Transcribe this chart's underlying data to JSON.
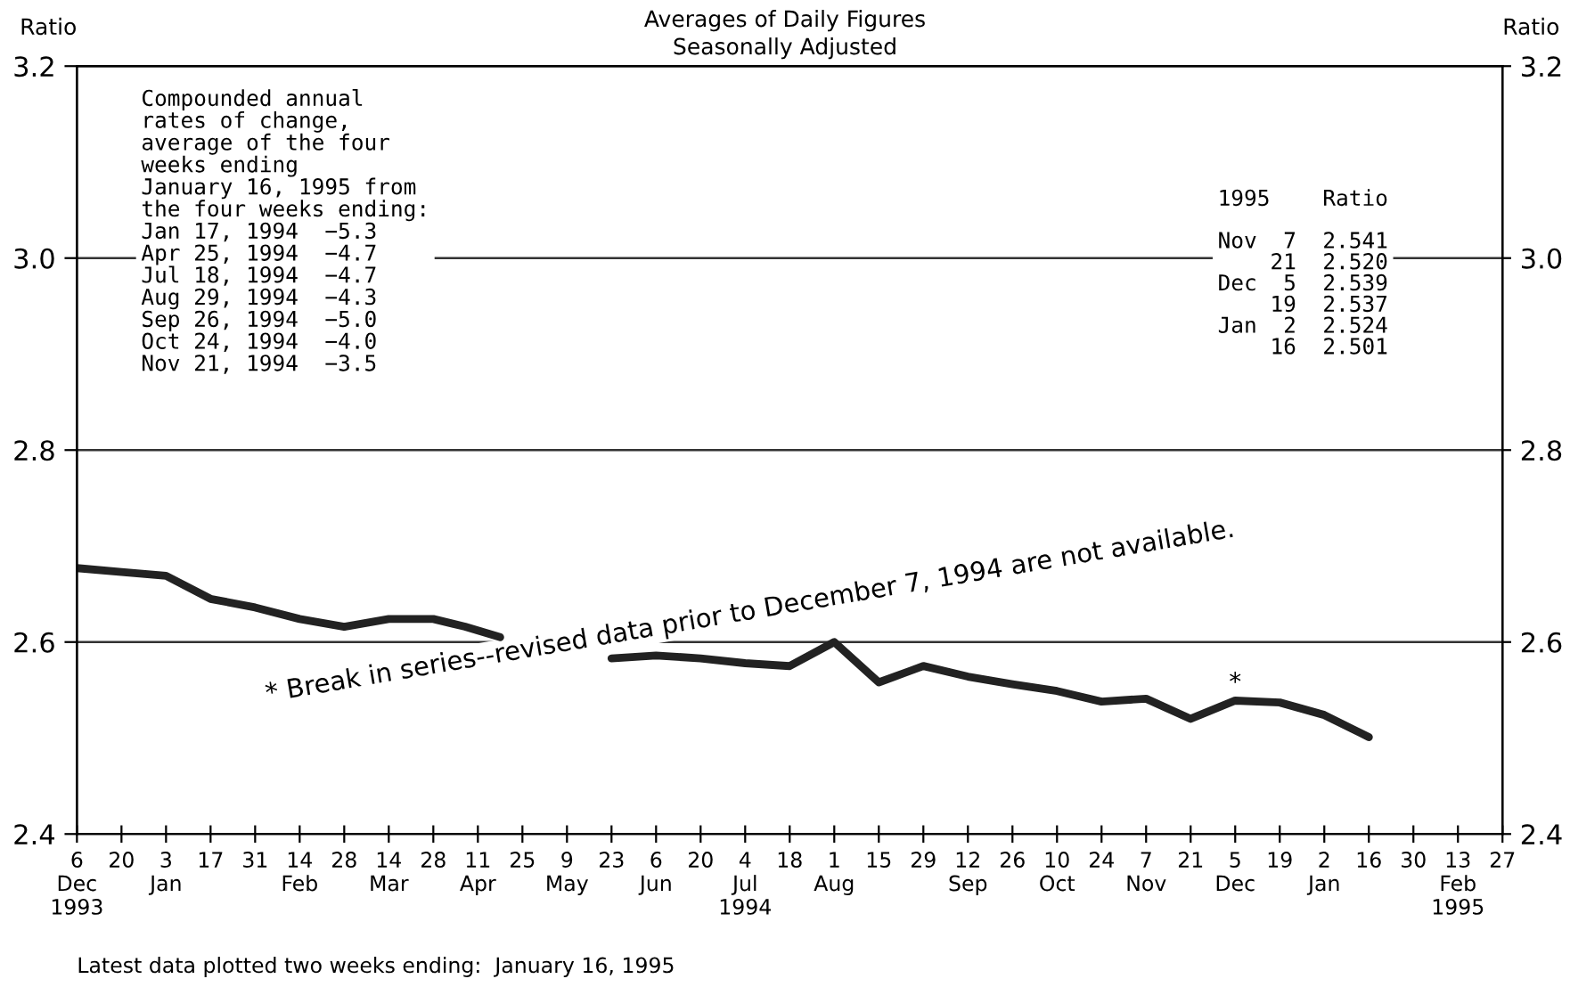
{
  "chart_data": {
    "type": "line",
    "title": "Averages of Daily Figures",
    "subtitle": "Seasonally Adjusted",
    "ylabel": "Ratio",
    "y2label": "Ratio",
    "x": [
      "1993-12-06",
      "1993-12-20",
      "1994-01-03",
      "1994-01-17",
      "1994-01-31",
      "1994-02-14",
      "1994-02-28",
      "1994-03-14",
      "1994-03-28",
      "1994-04-07",
      "1994-04-18",
      "1994-05-09",
      "1994-05-23",
      "1994-06-06",
      "1994-06-20",
      "1994-07-04",
      "1994-07-18",
      "1994-08-01",
      "1994-08-15",
      "1994-08-29",
      "1994-09-12",
      "1994-09-26",
      "1994-10-10",
      "1994-10-24",
      "1994-11-07",
      "1994-11-21",
      "1994-12-05",
      "1994-12-19",
      "1995-01-02",
      "1995-01-16"
    ],
    "series": [
      {
        "color": "#222222",
        "values": [
          2.677,
          2.673,
          2.669,
          2.645,
          2.636,
          2.624,
          2.616,
          2.624,
          2.624,
          2.616,
          2.605,
          null,
          2.583,
          2.586,
          2.583,
          2.578,
          2.575,
          2.6,
          2.558,
          2.575,
          2.564,
          2.556,
          2.549,
          2.538,
          2.541,
          2.52,
          2.539,
          2.537,
          2.524,
          2.501
        ]
      }
    ],
    "line_style": "solid",
    "marker": "none",
    "grid": "y",
    "legend": false,
    "xlim": [
      "1993-12-06",
      "1995-02-27"
    ],
    "xticks": [
      {
        "value": "1993-12-06",
        "label": "6\nDec\n1993"
      },
      {
        "value": "1993-12-20",
        "label": "20"
      },
      {
        "value": "1994-01-03",
        "label": "3\nJan"
      },
      {
        "value": "1994-01-17",
        "label": "17"
      },
      {
        "value": "1994-01-31",
        "label": "31"
      },
      {
        "value": "1994-02-14",
        "label": "14\nFeb"
      },
      {
        "value": "1994-02-28",
        "label": "28"
      },
      {
        "value": "1994-03-14",
        "label": "14\nMar"
      },
      {
        "value": "1994-03-28",
        "label": "28"
      },
      {
        "value": "1994-04-11",
        "label": "11\nApr"
      },
      {
        "value": "1994-04-25",
        "label": "25"
      },
      {
        "value": "1994-05-09",
        "label": "9\nMay"
      },
      {
        "value": "1994-05-23",
        "label": "23"
      },
      {
        "value": "1994-06-06",
        "label": "6\nJun"
      },
      {
        "value": "1994-06-20",
        "label": "20"
      },
      {
        "value": "1994-07-04",
        "label": "4\nJul\n1994"
      },
      {
        "value": "1994-07-18",
        "label": "18"
      },
      {
        "value": "1994-08-01",
        "label": "1\nAug"
      },
      {
        "value": "1994-08-15",
        "label": "15"
      },
      {
        "value": "1994-08-29",
        "label": "29"
      },
      {
        "value": "1994-09-12",
        "label": "12\nSep"
      },
      {
        "value": "1994-09-26",
        "label": "26"
      },
      {
        "value": "1994-10-10",
        "label": "10\nOct"
      },
      {
        "value": "1994-10-24",
        "label": "24"
      },
      {
        "value": "1994-11-07",
        "label": "7\nNov"
      },
      {
        "value": "1994-11-21",
        "label": "21"
      },
      {
        "value": "1994-12-05",
        "label": "5\nDec"
      },
      {
        "value": "1994-12-19",
        "label": "19"
      },
      {
        "value": "1995-01-02",
        "label": "2\nJan"
      },
      {
        "value": "1995-01-16",
        "label": "16"
      },
      {
        "value": "1995-01-30",
        "label": "30"
      },
      {
        "value": "1995-02-13",
        "label": "13\nFeb\n1995"
      },
      {
        "value": "1995-02-27",
        "label": "27"
      }
    ],
    "ylim": [
      2.4,
      3.2
    ],
    "yticks": [
      2.4,
      2.6,
      2.8,
      {
        "value": 3.0,
        "label": "3.0"
      },
      3.2
    ],
    "y2lim": [
      2.4,
      3.2
    ],
    "y2ticks": [
      2.4,
      2.6,
      2.8,
      {
        "value": 3.0,
        "label": "3.0"
      },
      3.2
    ],
    "annotations": [
      "Compounded annual\nrates of change,\naverage of the four\nweeks ending\nJanuary 16, 1995 from\nthe four weeks ending:\nJan 17, 1994  −5.3\nApr 25, 1994  −4.7\nJul 18, 1994  −4.7\nAug 29, 1994  −4.3\nSep 26, 1994  −5.0\nOct 24, 1994  −4.0\nNov 21, 1994  −3.5",
      "1995    Ratio\n\nNov  7  2.541\n    21  2.520\nDec  5  2.539\n    19  2.537\nJan  2  2.524\n    16  2.501",
      "* Break in series--revised data prior to December 7, 1994 are not available.",
      {
        "text": "*",
        "x": "1994-12-05",
        "y": 2.539
      },
      "Latest data plotted two weeks ending:  January 16, 1995"
    ]
  }
}
